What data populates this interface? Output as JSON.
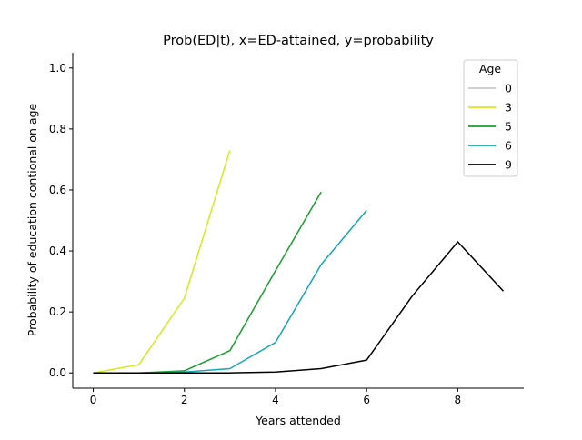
{
  "chart_data": {
    "type": "line",
    "title": "Prob(ED|t), x=ED-attained, y=probability",
    "xlabel": "Years attended",
    "ylabel": "Probability of education contional on age",
    "xlim": [
      -0.45,
      9.45
    ],
    "ylim": [
      -0.05,
      1.05
    ],
    "xticks": [
      0,
      2,
      4,
      6,
      8
    ],
    "xtick_labels": [
      "0",
      "2",
      "4",
      "6",
      "8"
    ],
    "yticks": [
      0.0,
      0.2,
      0.4,
      0.6,
      0.8,
      1.0
    ],
    "ytick_labels": [
      "0.0",
      "0.2",
      "0.4",
      "0.6",
      "0.8",
      "1.0"
    ],
    "grid": false,
    "legend": {
      "title": "Age",
      "placement": "top-right"
    },
    "series": [
      {
        "name": "0",
        "color": "#c8c8c8",
        "x": [
          0
        ],
        "y": [
          0.0
        ]
      },
      {
        "name": "3",
        "color": "#d4ea1a",
        "x": [
          0,
          1,
          2,
          3
        ],
        "y": [
          0.0,
          0.027,
          0.245,
          0.73
        ]
      },
      {
        "name": "5",
        "color": "#16a02a",
        "x": [
          0,
          1,
          2,
          3,
          4,
          5
        ],
        "y": [
          0.0,
          0.0,
          0.007,
          0.073,
          0.335,
          0.593
        ]
      },
      {
        "name": "6",
        "color": "#14a5b4",
        "x": [
          0,
          1,
          2,
          3,
          4,
          5,
          6
        ],
        "y": [
          0.0,
          0.0,
          0.003,
          0.014,
          0.1,
          0.355,
          0.533
        ]
      },
      {
        "name": "9",
        "color": "#000000",
        "x": [
          0,
          1,
          2,
          3,
          4,
          5,
          6,
          7,
          8,
          9
        ],
        "y": [
          0.0,
          0.0,
          0.0,
          0.0,
          0.003,
          0.014,
          0.042,
          0.252,
          0.43,
          0.268
        ]
      }
    ]
  }
}
